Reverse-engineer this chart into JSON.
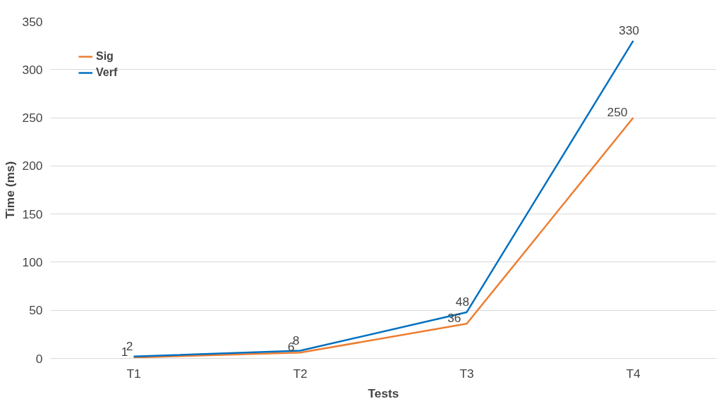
{
  "chart_data": {
    "type": "line",
    "xlabel": "Tests",
    "ylabel": "Time (ms)",
    "categories": [
      "T1",
      "T2",
      "T3",
      "T4"
    ],
    "series": [
      {
        "name": "Sig",
        "color": "#ed7d31",
        "values": [
          1,
          6,
          36,
          250
        ]
      },
      {
        "name": "Verf",
        "color": "#0070c0",
        "values": [
          2,
          8,
          48,
          330
        ]
      }
    ],
    "ylim": [
      0,
      350
    ],
    "yticks": [
      0,
      50,
      100,
      150,
      200,
      250,
      300,
      350
    ],
    "grid": "y",
    "legend": "top left",
    "data_labels": true,
    "marker": "none",
    "line_style": "solid"
  }
}
